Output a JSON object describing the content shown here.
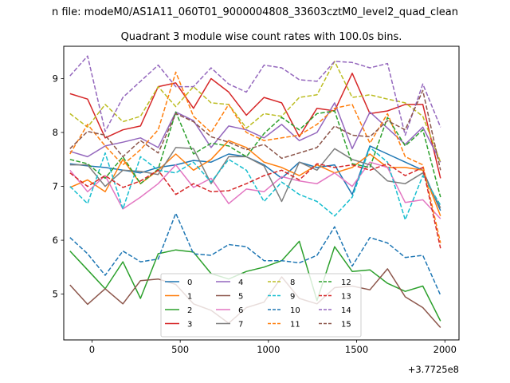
{
  "figure": {
    "suptitle": "n file: modeM0/AS1A11_060T01_9000004808_33603cztM0_level2_quad_clean",
    "offset_label": "+3.7725e8"
  },
  "chart_data": {
    "type": "line",
    "title": "Quadrant 3 module wise count rates with 100.0s bins.",
    "xlabel": "",
    "ylabel": "",
    "xlim": [
      -160,
      2080
    ],
    "ylim": [
      4.15,
      9.6
    ],
    "x_ticks": [
      0,
      500,
      1000,
      1500,
      2000
    ],
    "y_ticks": [
      5,
      6,
      7,
      8,
      9
    ],
    "grid": false,
    "legend": {
      "location": "lower center",
      "columns": 4
    },
    "x": [
      -125,
      -25,
      75,
      175,
      275,
      375,
      475,
      575,
      675,
      775,
      875,
      975,
      1075,
      1175,
      1275,
      1375,
      1475,
      1575,
      1675,
      1775,
      1875,
      1975
    ],
    "series": [
      {
        "name": "0",
        "color": "#1f77b4",
        "dash": "solid",
        "values": [
          7.42,
          7.38,
          7.35,
          7.3,
          7.25,
          7.35,
          7.4,
          7.48,
          7.45,
          7.6,
          7.55,
          7.4,
          7.15,
          7.45,
          7.35,
          7.4,
          6.85,
          7.75,
          7.6,
          7.45,
          7.3,
          6.55
        ]
      },
      {
        "name": "1",
        "color": "#ff7f0e",
        "dash": "solid",
        "values": [
          6.98,
          7.12,
          6.9,
          7.5,
          7.05,
          7.3,
          7.6,
          7.3,
          7.5,
          7.85,
          7.72,
          7.45,
          7.35,
          7.2,
          7.4,
          7.25,
          7.35,
          7.6,
          7.35,
          7.35,
          7.3,
          6.45
        ]
      },
      {
        "name": "2",
        "color": "#2ca02c",
        "dash": "solid",
        "values": [
          5.8,
          5.45,
          5.1,
          5.6,
          4.92,
          5.75,
          5.82,
          5.78,
          5.38,
          5.28,
          5.42,
          5.5,
          5.62,
          5.98,
          4.88,
          5.88,
          5.42,
          5.45,
          5.2,
          5.05,
          5.15,
          4.5
        ]
      },
      {
        "name": "3",
        "color": "#d62728",
        "dash": "solid",
        "values": [
          8.72,
          8.62,
          7.9,
          8.05,
          8.12,
          8.85,
          8.92,
          8.45,
          9.0,
          8.75,
          8.32,
          8.65,
          8.55,
          7.92,
          8.45,
          8.4,
          9.1,
          8.35,
          8.4,
          8.52,
          8.52,
          7.15
        ]
      },
      {
        "name": "4",
        "color": "#9467bd",
        "dash": "solid",
        "values": [
          7.65,
          7.55,
          7.75,
          7.82,
          7.9,
          7.72,
          8.38,
          8.22,
          7.72,
          8.12,
          8.05,
          7.9,
          8.15,
          7.85,
          8.0,
          8.55,
          7.7,
          8.38,
          8.08,
          7.78,
          8.1,
          7.45
        ]
      },
      {
        "name": "5",
        "color": "#8c564b",
        "dash": "solid",
        "values": [
          5.17,
          4.81,
          5.1,
          4.82,
          5.25,
          5.28,
          5.18,
          4.82,
          4.7,
          4.46,
          4.75,
          4.85,
          5.32,
          4.92,
          4.82,
          5.12,
          5.15,
          5.08,
          5.47,
          4.95,
          4.75,
          4.38
        ]
      },
      {
        "name": "6",
        "color": "#e377c2",
        "dash": "solid",
        "values": [
          7.3,
          6.9,
          7.2,
          6.58,
          6.8,
          7.05,
          7.4,
          6.98,
          7.15,
          6.68,
          6.95,
          6.9,
          7.18,
          7.1,
          7.05,
          7.25,
          7.0,
          7.45,
          7.35,
          6.7,
          6.75,
          6.4
        ]
      },
      {
        "name": "7",
        "color": "#7f7f7f",
        "dash": "solid",
        "values": [
          7.4,
          7.4,
          7.0,
          7.3,
          7.28,
          7.22,
          7.72,
          7.7,
          7.05,
          7.55,
          7.55,
          7.38,
          6.72,
          7.45,
          7.3,
          7.7,
          7.5,
          7.4,
          7.1,
          7.05,
          7.25,
          6.6
        ]
      },
      {
        "name": "8",
        "color": "#bcbd22",
        "dash": "dashed",
        "values": [
          8.35,
          8.1,
          8.52,
          8.2,
          8.3,
          8.85,
          8.48,
          8.85,
          8.55,
          8.52,
          8.08,
          8.35,
          8.3,
          8.65,
          8.7,
          9.32,
          8.65,
          8.7,
          8.62,
          8.55,
          8.3,
          7.45
        ]
      },
      {
        "name": "9",
        "color": "#17becf",
        "dash": "dashed",
        "values": [
          7.0,
          6.68,
          7.62,
          6.58,
          7.55,
          7.3,
          7.25,
          7.45,
          7.08,
          7.5,
          7.3,
          6.72,
          7.08,
          6.85,
          6.72,
          6.45,
          6.8,
          7.72,
          7.45,
          6.38,
          7.2,
          6.65
        ]
      },
      {
        "name": "10",
        "color": "#1f77b4",
        "dash": "dashed",
        "values": [
          6.05,
          5.75,
          5.35,
          5.8,
          5.6,
          5.65,
          6.5,
          5.75,
          5.72,
          5.92,
          5.88,
          5.62,
          5.62,
          5.58,
          5.72,
          6.25,
          5.52,
          6.05,
          5.95,
          5.68,
          5.72,
          4.98
        ]
      },
      {
        "name": "11",
        "color": "#ff7f0e",
        "dash": "dashed",
        "values": [
          7.6,
          8.15,
          7.75,
          7.4,
          7.68,
          8.05,
          9.12,
          8.3,
          8.0,
          8.52,
          8.0,
          7.85,
          7.9,
          7.95,
          8.15,
          8.45,
          8.52,
          7.8,
          8.35,
          7.55,
          7.4,
          5.95
        ]
      },
      {
        "name": "12",
        "color": "#2ca02c",
        "dash": "dashed",
        "values": [
          7.5,
          7.42,
          7.15,
          7.55,
          7.05,
          7.32,
          8.38,
          7.6,
          7.8,
          7.75,
          7.55,
          7.98,
          8.28,
          8.05,
          8.35,
          8.4,
          7.42,
          7.35,
          8.28,
          7.75,
          8.05,
          6.8
        ]
      },
      {
        "name": "13",
        "color": "#d62728",
        "dash": "dashed",
        "values": [
          7.25,
          7.0,
          7.2,
          6.98,
          7.1,
          7.3,
          6.85,
          7.05,
          6.9,
          6.92,
          7.05,
          7.2,
          7.3,
          7.12,
          7.42,
          7.35,
          7.4,
          7.3,
          7.42,
          7.2,
          7.35,
          5.85
        ]
      },
      {
        "name": "14",
        "color": "#9467bd",
        "dash": "dashed",
        "values": [
          9.05,
          9.42,
          8.02,
          8.65,
          8.95,
          9.25,
          8.85,
          8.85,
          9.2,
          8.9,
          8.75,
          9.25,
          9.2,
          8.98,
          8.95,
          9.32,
          9.3,
          9.2,
          9.28,
          7.95,
          8.9,
          8.1
        ]
      },
      {
        "name": "15",
        "color": "#8c564b",
        "dash": "dashed",
        "values": [
          7.7,
          8.02,
          7.95,
          7.55,
          7.85,
          7.62,
          8.35,
          8.2,
          7.92,
          7.82,
          7.68,
          7.78,
          7.52,
          7.62,
          7.72,
          8.12,
          7.95,
          7.92,
          8.22,
          8.05,
          8.78,
          7.3
        ]
      }
    ]
  }
}
